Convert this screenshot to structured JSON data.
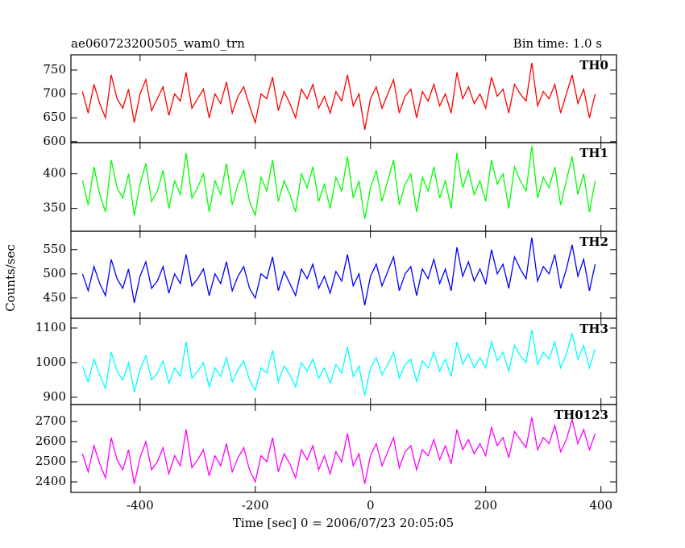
{
  "chart_data": {
    "type": "line",
    "title": "ae060723200505_wam0_trn",
    "subtitle": "Bin time: 1.0 s",
    "xlabel": "Time [sec] 0 = 2006/07/23 20:05:05",
    "ylabel": "Counts/sec",
    "xlim": [
      -520,
      427
    ],
    "xticks": [
      -400,
      -200,
      0,
      200,
      400
    ],
    "x": [
      -500,
      -490,
      -480,
      -470,
      -460,
      -450,
      -440,
      -430,
      -420,
      -410,
      -400,
      -390,
      -380,
      -370,
      -360,
      -350,
      -340,
      -330,
      -320,
      -310,
      -300,
      -290,
      -280,
      -270,
      -260,
      -250,
      -240,
      -230,
      -220,
      -210,
      -200,
      -190,
      -180,
      -170,
      -160,
      -150,
      -140,
      -130,
      -120,
      -110,
      -100,
      -90,
      -80,
      -70,
      -60,
      -50,
      -40,
      -30,
      -20,
      -10,
      0,
      10,
      20,
      30,
      40,
      50,
      60,
      70,
      80,
      90,
      100,
      110,
      120,
      130,
      140,
      150,
      160,
      170,
      180,
      190,
      200,
      210,
      220,
      230,
      240,
      250,
      260,
      270,
      280,
      290,
      300,
      310,
      320,
      330,
      340,
      350,
      360,
      370,
      380,
      390
    ],
    "series": [
      {
        "name": "TH0",
        "color": "#ff0000",
        "ylim": [
          598,
          782
        ],
        "yticks": [
          600,
          650,
          700,
          750
        ],
        "values": [
          705,
          660,
          720,
          680,
          650,
          740,
          690,
          670,
          710,
          640,
          700,
          730,
          665,
          690,
          715,
          655,
          700,
          685,
          745,
          670,
          690,
          710,
          650,
          700,
          680,
          725,
          660,
          695,
          715,
          675,
          640,
          700,
          690,
          735,
          665,
          705,
          680,
          650,
          710,
          690,
          720,
          670,
          695,
          660,
          705,
          685,
          740,
          675,
          700,
          625,
          690,
          715,
          670,
          700,
          730,
          660,
          695,
          710,
          650,
          705,
          685,
          720,
          675,
          700,
          660,
          745,
          690,
          715,
          680,
          700,
          670,
          735,
          695,
          710,
          660,
          720,
          700,
          685,
          765,
          675,
          705,
          690,
          720,
          660,
          700,
          740,
          680,
          710,
          650,
          700
        ]
      },
      {
        "name": "TH1",
        "color": "#00ff00",
        "ylim": [
          317,
          445
        ],
        "yticks": [
          350,
          400
        ],
        "values": [
          390,
          355,
          410,
          370,
          345,
          420,
          380,
          365,
          400,
          340,
          385,
          415,
          360,
          375,
          405,
          350,
          390,
          370,
          430,
          365,
          380,
          400,
          345,
          390,
          370,
          415,
          355,
          385,
          405,
          360,
          340,
          395,
          375,
          420,
          360,
          390,
          370,
          345,
          400,
          380,
          410,
          360,
          385,
          350,
          395,
          375,
          425,
          365,
          390,
          335,
          380,
          405,
          360,
          390,
          420,
          355,
          385,
          400,
          345,
          395,
          375,
          410,
          365,
          390,
          350,
          430,
          380,
          405,
          370,
          390,
          360,
          420,
          385,
          400,
          350,
          410,
          390,
          375,
          440,
          365,
          395,
          380,
          410,
          355,
          390,
          425,
          370,
          400,
          345,
          390
        ]
      },
      {
        "name": "TH2",
        "color": "#0000ff",
        "ylim": [
          408,
          588
        ],
        "yticks": [
          450,
          500,
          550
        ],
        "values": [
          500,
          465,
          515,
          480,
          455,
          530,
          490,
          470,
          510,
          440,
          495,
          525,
          470,
          485,
          515,
          460,
          500,
          480,
          540,
          475,
          490,
          510,
          455,
          500,
          480,
          525,
          465,
          495,
          515,
          470,
          450,
          500,
          490,
          535,
          465,
          505,
          480,
          455,
          510,
          490,
          520,
          470,
          495,
          460,
          505,
          485,
          540,
          475,
          500,
          435,
          495,
          520,
          475,
          505,
          535,
          465,
          500,
          515,
          455,
          510,
          490,
          530,
          480,
          510,
          465,
          555,
          495,
          525,
          485,
          510,
          480,
          550,
          500,
          520,
          470,
          535,
          510,
          490,
          575,
          485,
          515,
          500,
          540,
          470,
          510,
          560,
          495,
          530,
          465,
          520
        ]
      },
      {
        "name": "TH3",
        "color": "#00ffff",
        "ylim": [
          879,
          1128
        ],
        "yticks": [
          900,
          1000,
          1100
        ],
        "values": [
          990,
          945,
          1010,
          965,
          925,
          1030,
          975,
          950,
          1000,
          915,
          980,
          1020,
          950,
          970,
          1005,
          940,
          985,
          960,
          1060,
          955,
          975,
          1000,
          930,
          985,
          960,
          1015,
          945,
          980,
          1005,
          950,
          920,
          985,
          970,
          1035,
          945,
          990,
          965,
          930,
          1000,
          975,
          1010,
          955,
          985,
          940,
          995,
          970,
          1045,
          960,
          990,
          905,
          985,
          1015,
          965,
          995,
          1030,
          955,
          995,
          1010,
          945,
          1005,
          985,
          1030,
          975,
          1010,
          960,
          1060,
          995,
          1025,
          985,
          1015,
          985,
          1060,
          1005,
          1030,
          975,
          1050,
          1020,
          1000,
          1095,
          995,
          1030,
          1010,
          1060,
          985,
          1025,
          1085,
          1010,
          1050,
          985,
          1040
        ]
      },
      {
        "name": "TH0123",
        "color": "#ff00ff",
        "ylim": [
          2348,
          2784
        ],
        "yticks": [
          2400,
          2500,
          2600,
          2700
        ],
        "values": [
          2540,
          2450,
          2580,
          2490,
          2420,
          2620,
          2510,
          2460,
          2560,
          2390,
          2520,
          2600,
          2460,
          2500,
          2570,
          2440,
          2530,
          2480,
          2660,
          2470,
          2510,
          2560,
          2430,
          2530,
          2480,
          2590,
          2450,
          2520,
          2570,
          2460,
          2400,
          2530,
          2500,
          2620,
          2450,
          2540,
          2490,
          2420,
          2560,
          2510,
          2580,
          2460,
          2530,
          2440,
          2550,
          2500,
          2640,
          2480,
          2540,
          2390,
          2530,
          2590,
          2480,
          2550,
          2620,
          2470,
          2550,
          2580,
          2460,
          2560,
          2530,
          2610,
          2510,
          2580,
          2490,
          2660,
          2560,
          2610,
          2540,
          2590,
          2530,
          2670,
          2580,
          2620,
          2520,
          2650,
          2610,
          2570,
          2720,
          2560,
          2620,
          2590,
          2680,
          2550,
          2610,
          2710,
          2590,
          2660,
          2560,
          2640
        ]
      }
    ]
  }
}
